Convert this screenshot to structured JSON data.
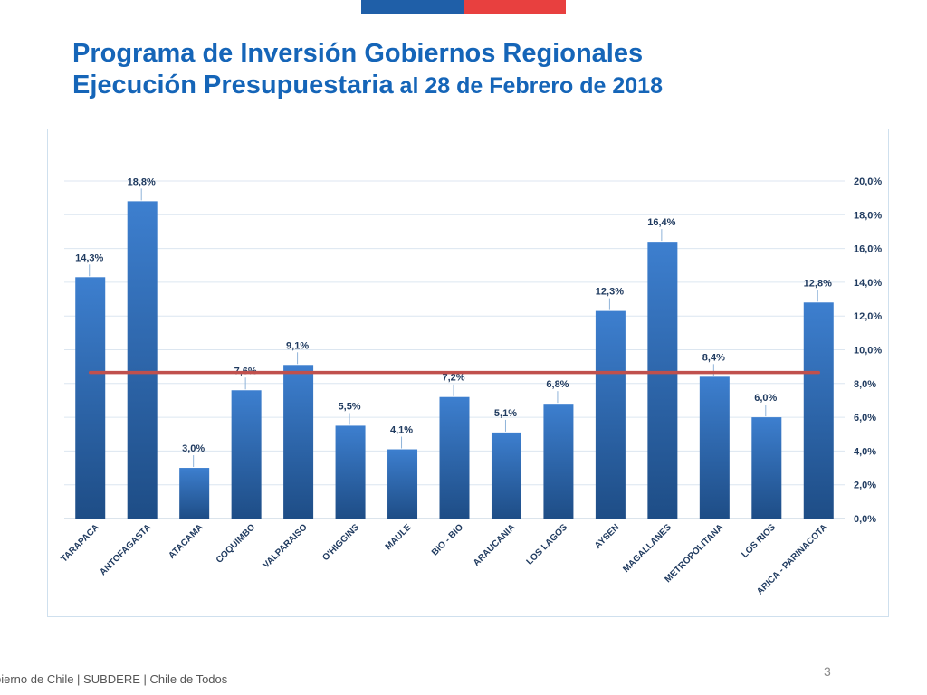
{
  "header": {
    "title_line1": "Programa de Inversión Gobiernos Regionales",
    "title_line2_main": "Ejecución Presupuestaria",
    "title_line2_rest": " al 28 de Febrero de 2018"
  },
  "footer": {
    "text": "bierno de Chile | SUBDERE | Chile de Todos",
    "page_number": "3"
  },
  "colors": {
    "flag_blue": "#1F5FA8",
    "flag_red": "#E8403F",
    "title": "#1565B8",
    "bar_top": "#3D7FCF",
    "bar_bottom": "#1E4D86",
    "average_line": "#C0504D"
  },
  "chart_data": {
    "type": "bar",
    "title": "",
    "xlabel": "",
    "ylabel": "",
    "categories": [
      "TARAPACA",
      "ANTOFAGASTA",
      "ATACAMA",
      "COQUIMBO",
      "VALPARAISO",
      "O'HIGGINS",
      "MAULE",
      "BIO - BIO",
      "ARAUCANIA",
      "LOS LAGOS",
      "AYSEN",
      "MAGALLANES",
      "METROPOLITANA",
      "LOS RIOS",
      "ARICA - PARINACOTA"
    ],
    "values": [
      14.3,
      18.8,
      3.0,
      7.6,
      9.1,
      5.5,
      4.1,
      7.2,
      5.1,
      6.8,
      12.3,
      16.4,
      8.4,
      6.0,
      12.8
    ],
    "value_labels": [
      "14,3%",
      "18,8%",
      "3,0%",
      "7,6%",
      "9,1%",
      "5,5%",
      "4,1%",
      "7,2%",
      "5,1%",
      "6,8%",
      "12,3%",
      "16,4%",
      "8,4%",
      "6,0%",
      "12,8%"
    ],
    "ylim": [
      0,
      20
    ],
    "y_ticks": [
      0,
      2,
      4,
      6,
      8,
      10,
      12,
      14,
      16,
      18,
      20
    ],
    "y_tick_labels": [
      "0,0%",
      "2,0%",
      "4,0%",
      "6,0%",
      "8,0%",
      "10,0%",
      "12,0%",
      "14,0%",
      "16,0%",
      "18,0%",
      "20,0%"
    ],
    "y_axis_side": "right",
    "grid": true,
    "average_line_value": 8.65
  }
}
